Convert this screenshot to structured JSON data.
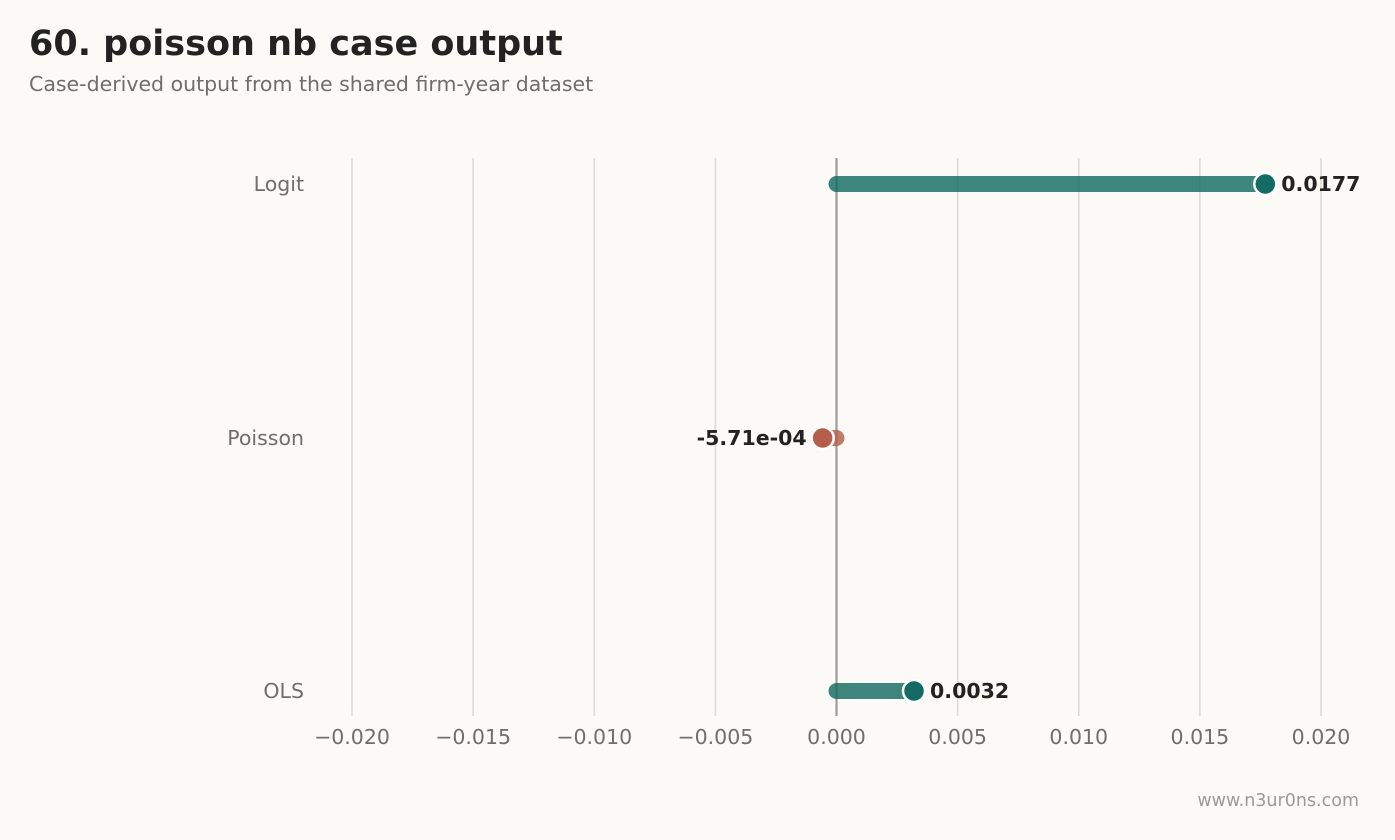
{
  "header": {
    "title": "60. poisson nb case output",
    "subtitle": "Case-derived output from the shared firm-year dataset"
  },
  "footer": {
    "watermark": "www.n3ur0ns.com"
  },
  "colors": {
    "background": "#fbfaf6",
    "positive": "#146b63",
    "negative": "#b55e4c",
    "grid": "#dedbd3",
    "zero_line": "#9e9c97"
  },
  "chart_data": {
    "type": "lollipop",
    "orientation": "horizontal",
    "categories": [
      "Logit",
      "Poisson",
      "OLS"
    ],
    "values": [
      0.0177,
      -0.000571,
      0.0032
    ],
    "value_labels": [
      "0.0177",
      "-5.71e-04",
      "0.0032"
    ],
    "xlim": [
      -0.022,
      0.022
    ],
    "xticks": [
      -0.02,
      -0.015,
      -0.01,
      -0.005,
      0.0,
      0.005,
      0.01,
      0.015,
      0.02
    ],
    "xtick_labels": [
      "−0.020",
      "−0.015",
      "−0.010",
      "−0.005",
      "0.000",
      "0.005",
      "0.010",
      "0.015",
      "0.020"
    ],
    "grid": "vertical",
    "zero_line": true,
    "title": "60. poisson nb case output",
    "subtitle": "Case-derived output from the shared firm-year dataset"
  }
}
